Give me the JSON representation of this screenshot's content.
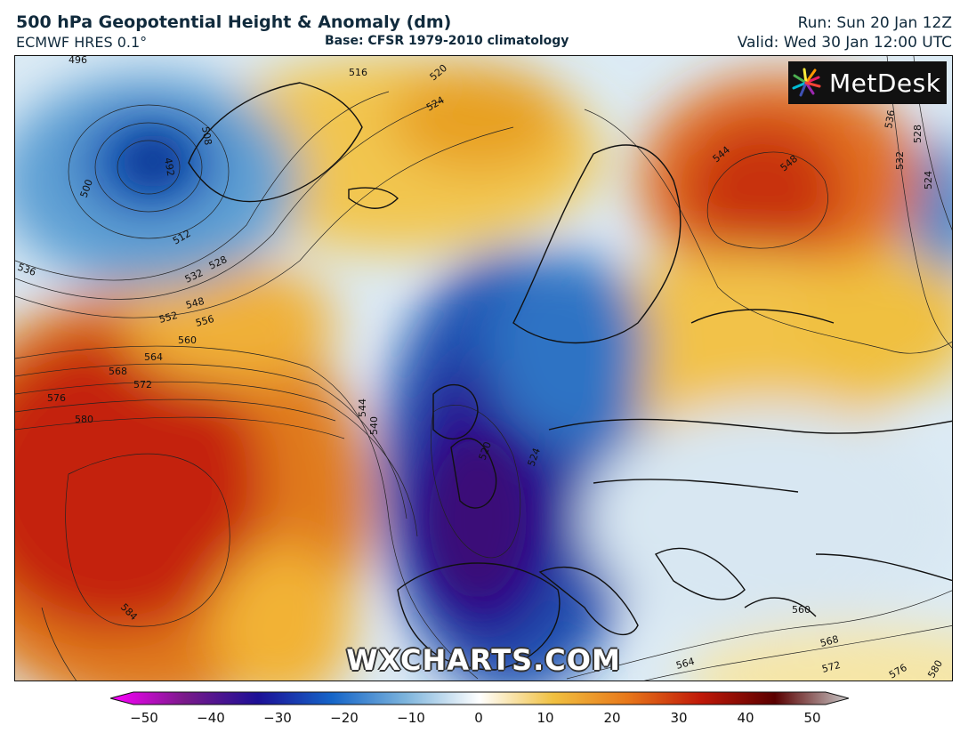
{
  "header": {
    "title": "500 hPa Geopotential Height & Anomaly (dm)",
    "model": "ECMWF HRES 0.1°",
    "base": "Base: CFSR 1979-2010 climatology",
    "run": "Run: Sun 20 Jan 12Z",
    "valid": "Valid: Wed 30 Jan 12:00 UTC"
  },
  "logo": {
    "text": "MetDesk",
    "icon": "metdesk-starburst-icon"
  },
  "watermark": "WXCHARTS.COM",
  "map": {
    "contour_labels": [
      "496",
      "492",
      "500",
      "508",
      "512",
      "516",
      "520",
      "524",
      "528",
      "532",
      "536",
      "548",
      "552",
      "556",
      "560",
      "564",
      "568",
      "572",
      "576",
      "580",
      "584",
      "544",
      "540",
      "520",
      "524",
      "548",
      "544",
      "536",
      "532",
      "528",
      "524",
      "560",
      "564",
      "568",
      "572",
      "576",
      "580"
    ]
  },
  "colorbar": {
    "ticks": [
      "−50",
      "−40",
      "−30",
      "−20",
      "−10",
      "0",
      "10",
      "20",
      "30",
      "40",
      "50"
    ],
    "colors": {
      "neg50": "#ff00ff",
      "neg40": "#7a1a8a",
      "neg30": "#1c0f96",
      "neg20": "#1565c8",
      "neg10": "#7db4dc",
      "zero": "#ffffff",
      "pos10": "#f0c040",
      "pos20": "#e8781a",
      "pos30": "#c01808",
      "pos40": "#5a0000",
      "pos50": "#c8c8c8"
    }
  }
}
